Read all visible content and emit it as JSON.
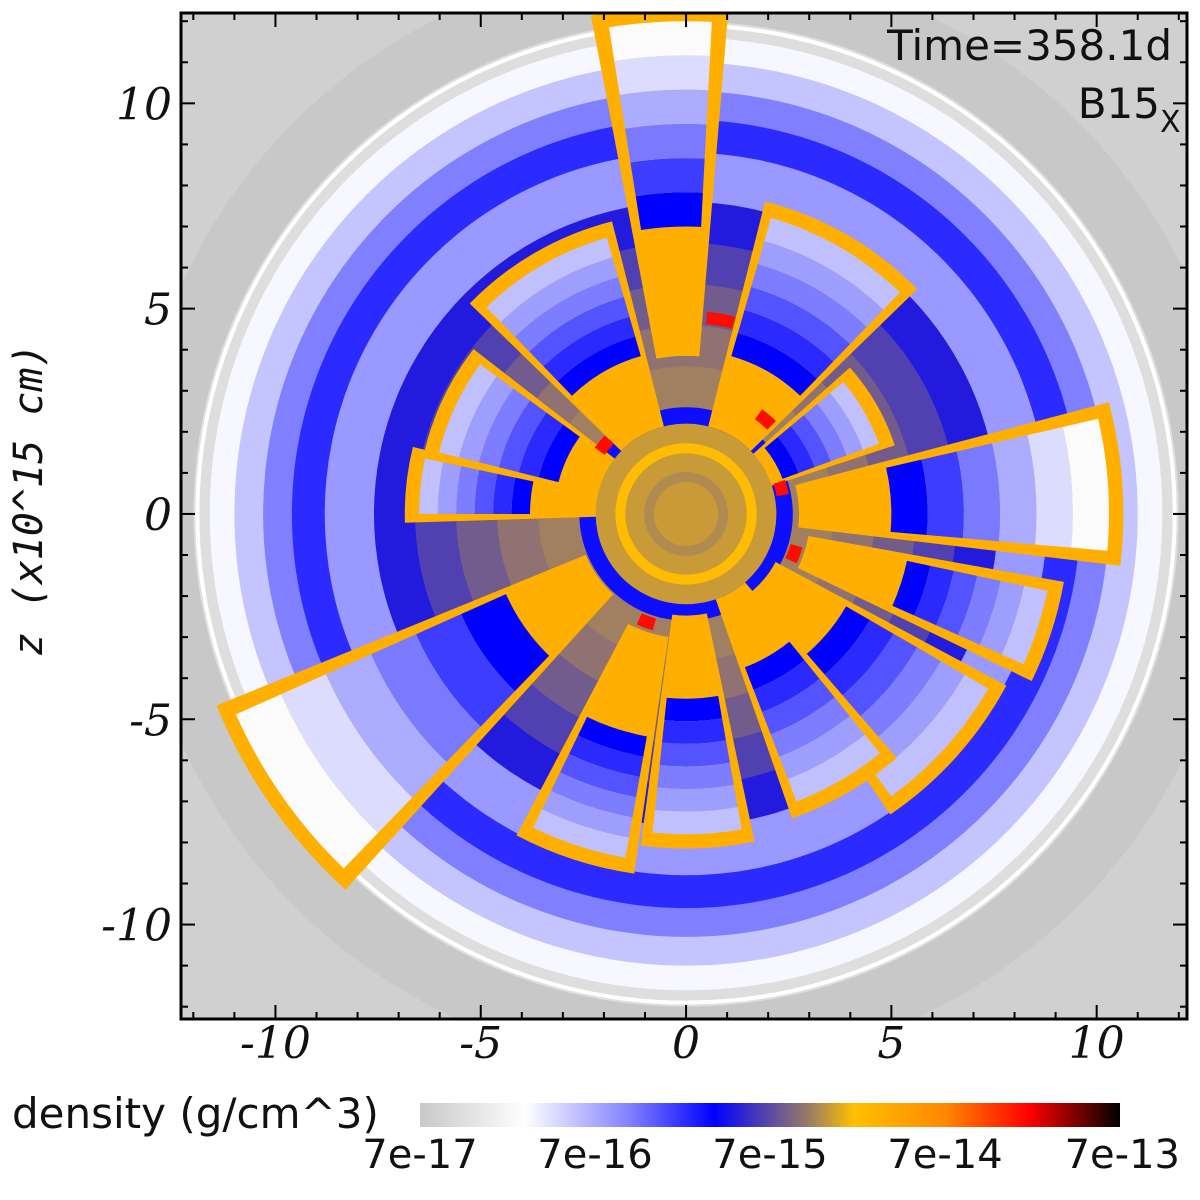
{
  "chart_data": {
    "type": "heatmap",
    "title": "",
    "xlabel": "",
    "ylabel": "z  (x10^15  cm)",
    "xlim": [
      -12.3,
      12.2
    ],
    "ylim": [
      -12.3,
      12.2
    ],
    "x_ticks": [
      {
        "value": -10,
        "label": "-10"
      },
      {
        "value": -5,
        "label": "-5"
      },
      {
        "value": 0,
        "label": "0"
      },
      {
        "value": 5,
        "label": "5"
      },
      {
        "value": 10,
        "label": "10"
      }
    ],
    "y_ticks": [
      {
        "value": 10,
        "label": "10"
      },
      {
        "value": 5,
        "label": "5"
      },
      {
        "value": 0,
        "label": "0"
      },
      {
        "value": -5,
        "label": "-5"
      },
      {
        "value": -10,
        "label": "-10"
      }
    ],
    "annotations": {
      "time": "Time=358.1d",
      "model": "B15",
      "model_subscript": "X"
    },
    "colorbar": {
      "label": "density (g/cm^3)",
      "scale": "log",
      "range": [
        7e-17,
        7e-13
      ],
      "ticks": [
        {
          "value": 7e-17,
          "label": "7e-17"
        },
        {
          "value": 7e-16,
          "label": "7e-16"
        },
        {
          "value": 7e-15,
          "label": "7e-15"
        },
        {
          "value": 7e-14,
          "label": "7e-14"
        },
        {
          "value": 7e-13,
          "label": "7e-13"
        }
      ],
      "colors": [
        {
          "pos": 0.0,
          "color": "#c8c8c8"
        },
        {
          "pos": 0.15,
          "color": "#ffffff"
        },
        {
          "pos": 0.3,
          "color": "#8080ff"
        },
        {
          "pos": 0.42,
          "color": "#0000ff"
        },
        {
          "pos": 0.56,
          "color": "#a08060"
        },
        {
          "pos": 0.62,
          "color": "#ffc000"
        },
        {
          "pos": 0.75,
          "color": "#ff8800"
        },
        {
          "pos": 0.87,
          "color": "#ff0000"
        },
        {
          "pos": 1.0,
          "color": "#000000"
        }
      ]
    },
    "field_description": {
      "outer_shell_density": 7e-17,
      "circumstellar_density": 7e-16,
      "center_density": 3e-15,
      "clumps": [
        {
          "angle_deg": 93,
          "r_inner": 7.0,
          "r_outer": 12.0,
          "half_width_deg": 6
        },
        {
          "angle_deg": 60,
          "r_inner": 4.0,
          "r_outer": 7.5,
          "half_width_deg": 14
        },
        {
          "angle_deg": 120,
          "r_inner": 4.0,
          "r_outer": 7.0,
          "half_width_deg": 14
        },
        {
          "angle_deg": 155,
          "r_inner": 3.2,
          "r_outer": 6.2,
          "half_width_deg": 11
        },
        {
          "angle_deg": 174,
          "r_inner": 3.8,
          "r_outer": 6.5,
          "half_width_deg": 6
        },
        {
          "angle_deg": 4,
          "r_inner": 5.0,
          "r_outer": 10.3,
          "half_width_deg": 9
        },
        {
          "angle_deg": -18,
          "r_inner": 5.5,
          "r_outer": 9.0,
          "half_width_deg": 6
        },
        {
          "angle_deg": -42,
          "r_inner": 4.5,
          "r_outer": 8.5,
          "half_width_deg": 12
        },
        {
          "angle_deg": -60,
          "r_inner": 4.0,
          "r_outer": 7.5,
          "half_width_deg": 9
        },
        {
          "angle_deg": -88,
          "r_inner": 4.5,
          "r_outer": 7.8,
          "half_width_deg": 8
        },
        {
          "angle_deg": -108,
          "r_inner": 5.5,
          "r_outer": 8.5,
          "half_width_deg": 8
        },
        {
          "angle_deg": -145,
          "r_inner": 4.8,
          "r_outer": 12.0,
          "half_width_deg": 11
        },
        {
          "angle_deg": 30,
          "r_inner": 2.5,
          "r_outer": 5.0,
          "half_width_deg": 10
        }
      ]
    }
  }
}
